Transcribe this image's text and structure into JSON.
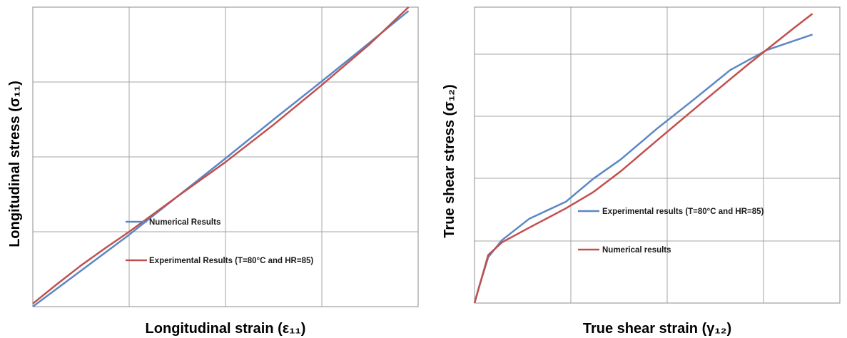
{
  "chart_data": [
    {
      "type": "line",
      "title": "",
      "xlabel": "Longitudinal strain (ε₁₁)",
      "ylabel": "Longitudinal stress (σ₁₁)",
      "xlim": [
        0,
        4
      ],
      "ylim": [
        0,
        4
      ],
      "grid": true,
      "legend_position": "center-left",
      "series": [
        {
          "name": "Numerical Results",
          "color": "#5b87c5",
          "x": [
            0,
            0.5,
            1.0,
            1.5,
            2.0,
            2.5,
            3.0,
            3.5,
            3.9
          ],
          "y": [
            0,
            0.48,
            0.96,
            1.47,
            1.98,
            2.5,
            3.01,
            3.53,
            3.95
          ]
        },
        {
          "name": "Experimental Results (T=80°C and HR=85)",
          "color": "#c0504d",
          "x": [
            0,
            0.25,
            0.5,
            0.75,
            1.0,
            1.5,
            2.0,
            2.5,
            3.0,
            3.5,
            3.9
          ],
          "y": [
            0.04,
            0.3,
            0.55,
            0.78,
            1.0,
            1.47,
            1.93,
            2.43,
            2.96,
            3.51,
            4.0
          ]
        }
      ]
    },
    {
      "type": "line",
      "title": "",
      "xlabel": "True shear strain (γ₁₂)",
      "ylabel": "True shear stress (σ₁₂)",
      "xlim": [
        0,
        4
      ],
      "ylim": [
        0,
        4
      ],
      "grid": true,
      "legend_position": "center",
      "series": [
        {
          "name": "Experimental results (T=80°C and HR=85)",
          "color": "#5b87c5",
          "x": [
            0,
            0.05,
            0.15,
            0.3,
            0.6,
            1.0,
            1.3,
            1.6,
            2.0,
            2.4,
            2.8,
            3.2,
            3.7
          ],
          "y": [
            0,
            0.22,
            0.62,
            0.85,
            1.14,
            1.37,
            1.68,
            1.94,
            2.36,
            2.75,
            3.15,
            3.42,
            3.63
          ]
        },
        {
          "name": "Numerical results",
          "color": "#c0504d",
          "x": [
            0,
            0.15,
            0.3,
            0.6,
            1.0,
            1.3,
            1.6,
            2.0,
            2.5,
            3.0,
            3.5,
            3.7
          ],
          "y": [
            0,
            0.65,
            0.82,
            1.02,
            1.28,
            1.5,
            1.78,
            2.2,
            2.72,
            3.23,
            3.72,
            3.91
          ]
        }
      ]
    }
  ]
}
